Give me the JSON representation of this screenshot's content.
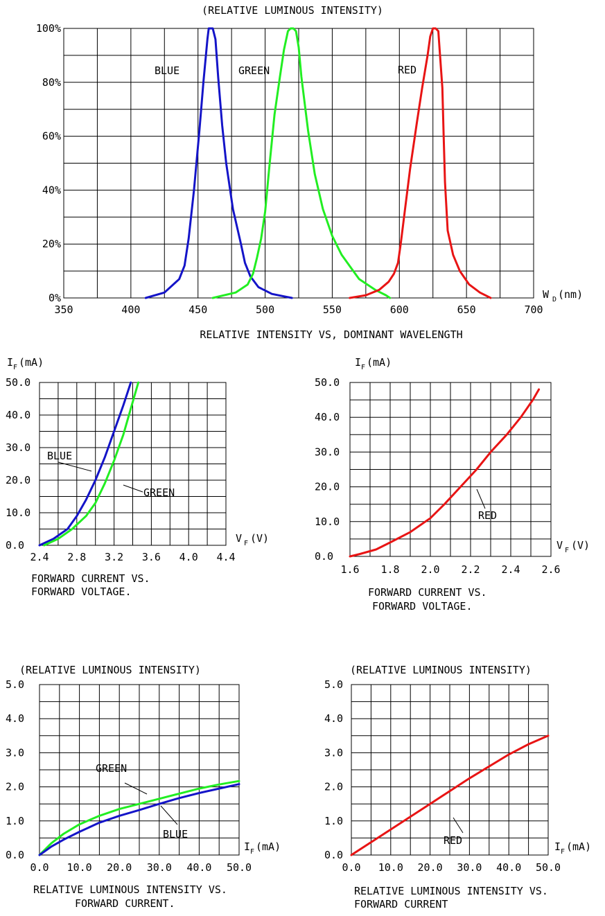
{
  "chart_data": [
    {
      "type": "line",
      "top_label": "(RELATIVE LUMINOUS INTENSITY)",
      "title": "RELATIVE INTENSITY  VS, DOMINANT WAVELENGTH",
      "xlabel_main": "W",
      "xlabel_sub": "D",
      "xlabel_unit": "(nm)",
      "xlim": [
        350,
        700
      ],
      "ylim": [
        0,
        100
      ],
      "xticks": [
        "350",
        "400",
        "450",
        "500",
        "550",
        "600",
        "650",
        "700"
      ],
      "yticks": [
        "0%",
        "20%",
        "40%",
        "60%",
        "80%",
        "100%"
      ],
      "grid": true,
      "series": [
        {
          "name": "BLUE",
          "color": "#1414c8",
          "x": [
            411,
            425,
            436,
            440,
            443,
            447,
            451,
            454,
            457,
            458,
            461,
            463,
            465,
            468,
            471,
            476,
            482,
            485,
            489,
            495,
            505,
            515,
            520
          ],
          "y": [
            0,
            2,
            7,
            12,
            22,
            40,
            62,
            80,
            96,
            100,
            100,
            96,
            82,
            64,
            50,
            33,
            20,
            13,
            8,
            4,
            1.5,
            0.5,
            0
          ]
        },
        {
          "name": "GREEN",
          "color": "#22ee22",
          "x": [
            461,
            478,
            487,
            491,
            494,
            497,
            500,
            503,
            507,
            511,
            514,
            517,
            519,
            521,
            523,
            525,
            527,
            532,
            537,
            543,
            550,
            557,
            570,
            582,
            590,
            593
          ],
          "y": [
            0,
            2,
            5,
            9,
            15,
            22,
            32,
            48,
            68,
            82,
            92,
            99,
            100,
            100,
            99,
            93,
            82,
            62,
            46,
            33,
            23,
            16,
            7,
            3,
            1,
            0
          ]
        },
        {
          "name": "RED",
          "color": "#e81414",
          "x": [
            563,
            575,
            585,
            592,
            596,
            599,
            601,
            604,
            608,
            613,
            617,
            621,
            623,
            625,
            627,
            629,
            630,
            632,
            633,
            634,
            636,
            640,
            645,
            652,
            660,
            668
          ],
          "y": [
            0,
            1,
            3,
            6,
            9,
            13,
            20,
            32,
            48,
            65,
            78,
            90,
            97,
            100,
            100,
            99,
            92,
            78,
            60,
            43,
            25,
            16,
            10,
            5,
            2,
            0
          ]
        }
      ],
      "annotations": [
        "BLUE",
        "GREEN",
        "RED"
      ]
    },
    {
      "type": "line",
      "ylabel_main": "I",
      "ylabel_sub": "F",
      "ylabel_unit": "(mA)",
      "xlabel_main": "V",
      "xlabel_sub": "F",
      "xlabel_unit": "(V)",
      "caption_line1": "FORWARD CURRENT VS.",
      "caption_line2": "FORWARD VOLTAGE.",
      "xlim": [
        2.4,
        4.4
      ],
      "ylim": [
        0,
        50
      ],
      "xticks": [
        "2.4",
        "2.8",
        "3.2",
        "3.6",
        "4.0",
        "4.4"
      ],
      "yticks": [
        "0.0",
        "10.0",
        "20.0",
        "30.0",
        "40.0",
        "50.0"
      ],
      "grid": true,
      "series": [
        {
          "name": "BLUE",
          "color": "#1414c8",
          "x": [
            2.4,
            2.55,
            2.7,
            2.8,
            2.9,
            3.0,
            3.1,
            3.2,
            3.3,
            3.38
          ],
          "y": [
            0,
            2,
            5,
            9,
            14,
            20,
            27,
            35,
            43,
            50
          ]
        },
        {
          "name": "GREEN",
          "color": "#22ee22",
          "x": [
            2.45,
            2.6,
            2.75,
            2.9,
            3.0,
            3.1,
            3.2,
            3.3,
            3.38,
            3.46
          ],
          "y": [
            0,
            2,
            5,
            9,
            13,
            19,
            26,
            34,
            42,
            50
          ]
        }
      ],
      "annotations": [
        "BLUE",
        "GREEN"
      ]
    },
    {
      "type": "line",
      "ylabel_main": "I",
      "ylabel_sub": "F",
      "ylabel_unit": "(mA)",
      "xlabel_main": "V",
      "xlabel_sub": "F",
      "xlabel_unit": "(V)",
      "caption_line1": "FORWARD CURRENT VS.",
      "caption_line2": "FORWARD VOLTAGE.",
      "xlim": [
        1.6,
        2.6
      ],
      "ylim": [
        0,
        50
      ],
      "xticks": [
        "1.6",
        "1.8",
        "2.0",
        "2.2",
        "2.4",
        "2.6"
      ],
      "yticks": [
        "0.0",
        "10.0",
        "20.0",
        "30.0",
        "40.0",
        "50.0"
      ],
      "grid": true,
      "series": [
        {
          "name": "RED",
          "color": "#e81414",
          "x": [
            1.6,
            1.65,
            1.73,
            1.8,
            1.9,
            2.0,
            2.07,
            2.15,
            2.23,
            2.3,
            2.38,
            2.45,
            2.51,
            2.54
          ],
          "y": [
            0,
            0.7,
            2,
            4,
            7,
            11,
            15,
            20,
            25,
            30,
            35,
            40,
            45,
            48
          ]
        }
      ],
      "annotations": [
        "RED"
      ]
    },
    {
      "type": "line",
      "top_label": "(RELATIVE LUMINOUS INTENSITY)",
      "xlabel_main": "I",
      "xlabel_sub": "F",
      "xlabel_unit": "(mA)",
      "caption_line1": "RELATIVE LUMINOUS INTENSITY VS.",
      "caption_line2": "FORWARD CURRENT.",
      "xlim": [
        0,
        50
      ],
      "ylim": [
        0,
        5
      ],
      "xticks": [
        "0.0",
        "10.0",
        "20.0",
        "30.0",
        "40.0",
        "50.0"
      ],
      "yticks": [
        "0.0",
        "1.0",
        "2.0",
        "3.0",
        "4.0",
        "5.0"
      ],
      "grid": true,
      "series": [
        {
          "name": "GREEN",
          "color": "#22ee22",
          "x": [
            0,
            3,
            6,
            10,
            15,
            20,
            25,
            30,
            35,
            40,
            45,
            50
          ],
          "y": [
            0,
            0.35,
            0.62,
            0.9,
            1.15,
            1.35,
            1.5,
            1.65,
            1.8,
            1.95,
            2.07,
            2.17
          ]
        },
        {
          "name": "BLUE",
          "color": "#1414c8",
          "x": [
            0,
            3,
            6,
            10,
            15,
            20,
            25,
            30,
            35,
            40,
            45,
            50
          ],
          "y": [
            0,
            0.25,
            0.45,
            0.68,
            0.95,
            1.15,
            1.32,
            1.5,
            1.67,
            1.82,
            1.95,
            2.08
          ]
        }
      ],
      "annotations": [
        "GREEN",
        "BLUE"
      ]
    },
    {
      "type": "line",
      "top_label": "(RELATIVE LUMINOUS INTENSITY)",
      "xlabel_main": "I",
      "xlabel_sub": "F",
      "xlabel_unit": "(mA)",
      "caption_line1": "RELATIVE LUMINOUS INTENSITY VS.",
      "caption_line2": "FORWARD CURRENT",
      "xlim": [
        0,
        50
      ],
      "ylim": [
        0,
        5
      ],
      "xticks": [
        "0.0",
        "10.0",
        "20.0",
        "30.0",
        "40.0",
        "50.0"
      ],
      "yticks": [
        "0.0",
        "1.0",
        "2.0",
        "3.0",
        "4.0",
        "5.0"
      ],
      "grid": true,
      "series": [
        {
          "name": "RED",
          "color": "#e81414",
          "x": [
            0,
            10,
            20,
            30,
            40,
            45,
            50
          ],
          "y": [
            0,
            0.75,
            1.5,
            2.25,
            2.95,
            3.25,
            3.5
          ]
        }
      ],
      "annotations": [
        "RED"
      ]
    }
  ]
}
